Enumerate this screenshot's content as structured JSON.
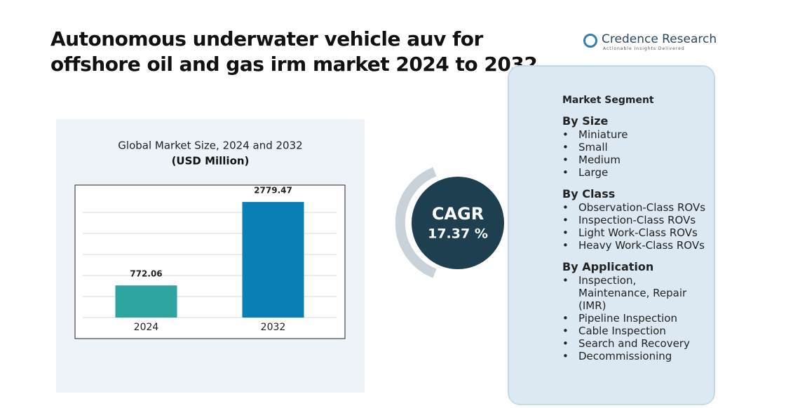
{
  "header": {
    "title": "Autonomous underwater vehicle auv for offshore oil and gas irm market  2024  to 2032",
    "logo": "Credence Research",
    "tagline": "Actionable Insights Delivered"
  },
  "chart_data": {
    "type": "bar",
    "title": "Global Market Size, 2024 and 2032",
    "subtitle": "(USD Million)",
    "categories": [
      "2024",
      "2032"
    ],
    "values": [
      772.06,
      2779.47
    ],
    "colors": [
      "#2ea5a0",
      "#0a7fb5"
    ],
    "ylim": [
      0,
      3000
    ],
    "grid": true
  },
  "cagr": {
    "label": "CAGR",
    "value": "17.37 %"
  },
  "segments": {
    "title": "Market Segment",
    "groups": [
      {
        "name": "By Size",
        "items": [
          "Miniature",
          "Small",
          "Medium",
          "Large"
        ]
      },
      {
        "name": "By Class",
        "items": [
          "Observation-Class ROVs",
          "Inspection-Class ROVs",
          "Light Work-Class ROVs",
          "Heavy Work-Class ROVs"
        ]
      },
      {
        "name": "By Application",
        "items": [
          "Inspection, Maintenance, Repair (IMR)",
          "Pipeline Inspection",
          "Cable Inspection",
          "Search and Recovery",
          "Decommissioning"
        ]
      }
    ]
  }
}
